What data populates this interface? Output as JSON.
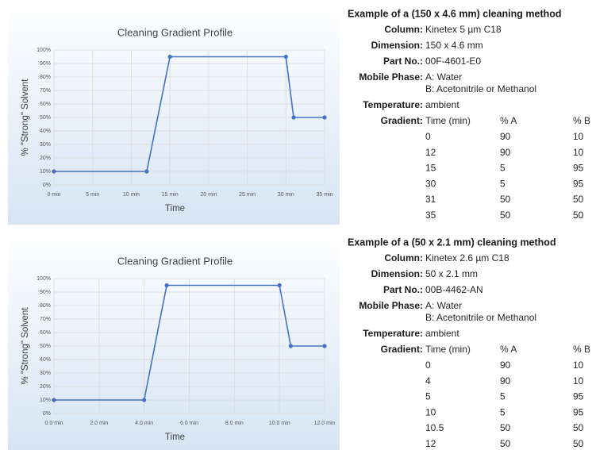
{
  "chart_data": [
    {
      "type": "line",
      "title": "Cleaning Gradient Profile",
      "x_label": "Time",
      "y_label": "% \"Strong\" Solvent",
      "x": [
        0,
        12,
        15,
        30,
        31,
        35
      ],
      "series": [
        {
          "color": "#4472c4",
          "values": [
            10,
            10,
            95,
            95,
            50,
            50
          ]
        }
      ],
      "xlim": [
        0,
        35
      ],
      "xticks": [
        {
          "value": 0,
          "label": "0 min"
        },
        {
          "value": 5,
          "label": "5 min"
        },
        {
          "value": 10,
          "label": "10 min"
        },
        {
          "value": 15,
          "label": "15 min"
        },
        {
          "value": 20,
          "label": "20 min"
        },
        {
          "value": 25,
          "label": "25 min"
        },
        {
          "value": 30,
          "label": "30 min"
        },
        {
          "value": 35,
          "label": "35 min"
        }
      ],
      "ylim": [
        0,
        100
      ],
      "yticks": [
        {
          "value": 0,
          "label": "0%"
        },
        {
          "value": 10,
          "label": "10%"
        },
        {
          "value": 20,
          "label": "20%"
        },
        {
          "value": 30,
          "label": "30%"
        },
        {
          "value": 40,
          "label": "40%"
        },
        {
          "value": 50,
          "label": "50%"
        },
        {
          "value": 60,
          "label": "60%"
        },
        {
          "value": 70,
          "label": "70%"
        },
        {
          "value": 80,
          "label": "80%"
        },
        {
          "value": 90,
          "label": "90%"
        },
        {
          "value": 100,
          "label": "100%"
        }
      ],
      "grid": true
    },
    {
      "type": "line",
      "title": "Cleaning Gradient Profile",
      "x_label": "Time",
      "y_label": "% \"Strong\" Solvent",
      "x": [
        0,
        4,
        5,
        10,
        10.5,
        12
      ],
      "series": [
        {
          "color": "#4472c4",
          "values": [
            10,
            10,
            95,
            95,
            50,
            50
          ]
        }
      ],
      "xlim": [
        0,
        12
      ],
      "xticks": [
        {
          "value": 0,
          "label": "0.0 min"
        },
        {
          "value": 2,
          "label": "2.0 min"
        },
        {
          "value": 4,
          "label": "4.0 min"
        },
        {
          "value": 6,
          "label": "6.0 min"
        },
        {
          "value": 8,
          "label": "8.0 min"
        },
        {
          "value": 10,
          "label": "10.0 min"
        },
        {
          "value": 12,
          "label": "12.0 min"
        }
      ],
      "ylim": [
        0,
        100
      ],
      "yticks": [
        {
          "value": 0,
          "label": "0%"
        },
        {
          "value": 10,
          "label": "10%"
        },
        {
          "value": 20,
          "label": "20%"
        },
        {
          "value": 30,
          "label": "30%"
        },
        {
          "value": 40,
          "label": "40%"
        },
        {
          "value": 50,
          "label": "50%"
        },
        {
          "value": 60,
          "label": "60%"
        },
        {
          "value": 70,
          "label": "70%"
        },
        {
          "value": 80,
          "label": "80%"
        },
        {
          "value": 90,
          "label": "90%"
        },
        {
          "value": 100,
          "label": "100%"
        }
      ],
      "grid": true
    }
  ],
  "methods": [
    {
      "title": "Example of a (150 x 4.6 mm) cleaning method",
      "fields": [
        {
          "label": "Column:",
          "lines": [
            "Kinetex 5 µm C18"
          ]
        },
        {
          "label": "Dimension:",
          "lines": [
            "150 x 4.6 mm"
          ]
        },
        {
          "label": "Part No.:",
          "lines": [
            "00F-4601-E0"
          ]
        },
        {
          "label": "Mobile Phase:",
          "lines": [
            "A: Water",
            "B: Acetonitrile or Methanol"
          ]
        },
        {
          "label": "Temperature:",
          "lines": [
            "ambient"
          ]
        }
      ],
      "gradient": {
        "label": "Gradient:",
        "header": [
          "Time (min)",
          "% A",
          "% B"
        ],
        "rows": [
          [
            "0",
            "90",
            "10"
          ],
          [
            "12",
            "90",
            "10"
          ],
          [
            "15",
            "5",
            "95"
          ],
          [
            "30",
            "5",
            "95"
          ],
          [
            "31",
            "50",
            "50"
          ],
          [
            "35",
            "50",
            "50"
          ]
        ]
      }
    },
    {
      "title": "Example of a (50 x 2.1 mm) cleaning method",
      "fields": [
        {
          "label": "Column:",
          "lines": [
            "Kinetex 2.6 µm C18"
          ]
        },
        {
          "label": "Dimension:",
          "lines": [
            "50 x 2.1 mm"
          ]
        },
        {
          "label": "Part No.:",
          "lines": [
            "00B-4462-AN"
          ]
        },
        {
          "label": "Mobile Phase:",
          "lines": [
            "A: Water",
            "B: Acetonitrile or Methanol"
          ]
        },
        {
          "label": "Temperature:",
          "lines": [
            "ambient"
          ]
        }
      ],
      "gradient": {
        "label": "Gradient:",
        "header": [
          "Time (min)",
          "% A",
          "% B"
        ],
        "rows": [
          [
            "0",
            "90",
            "10"
          ],
          [
            "4",
            "90",
            "10"
          ],
          [
            "5",
            "5",
            "95"
          ],
          [
            "10",
            "5",
            "95"
          ],
          [
            "10.5",
            "50",
            "50"
          ],
          [
            "12",
            "50",
            "50"
          ]
        ]
      }
    }
  ]
}
